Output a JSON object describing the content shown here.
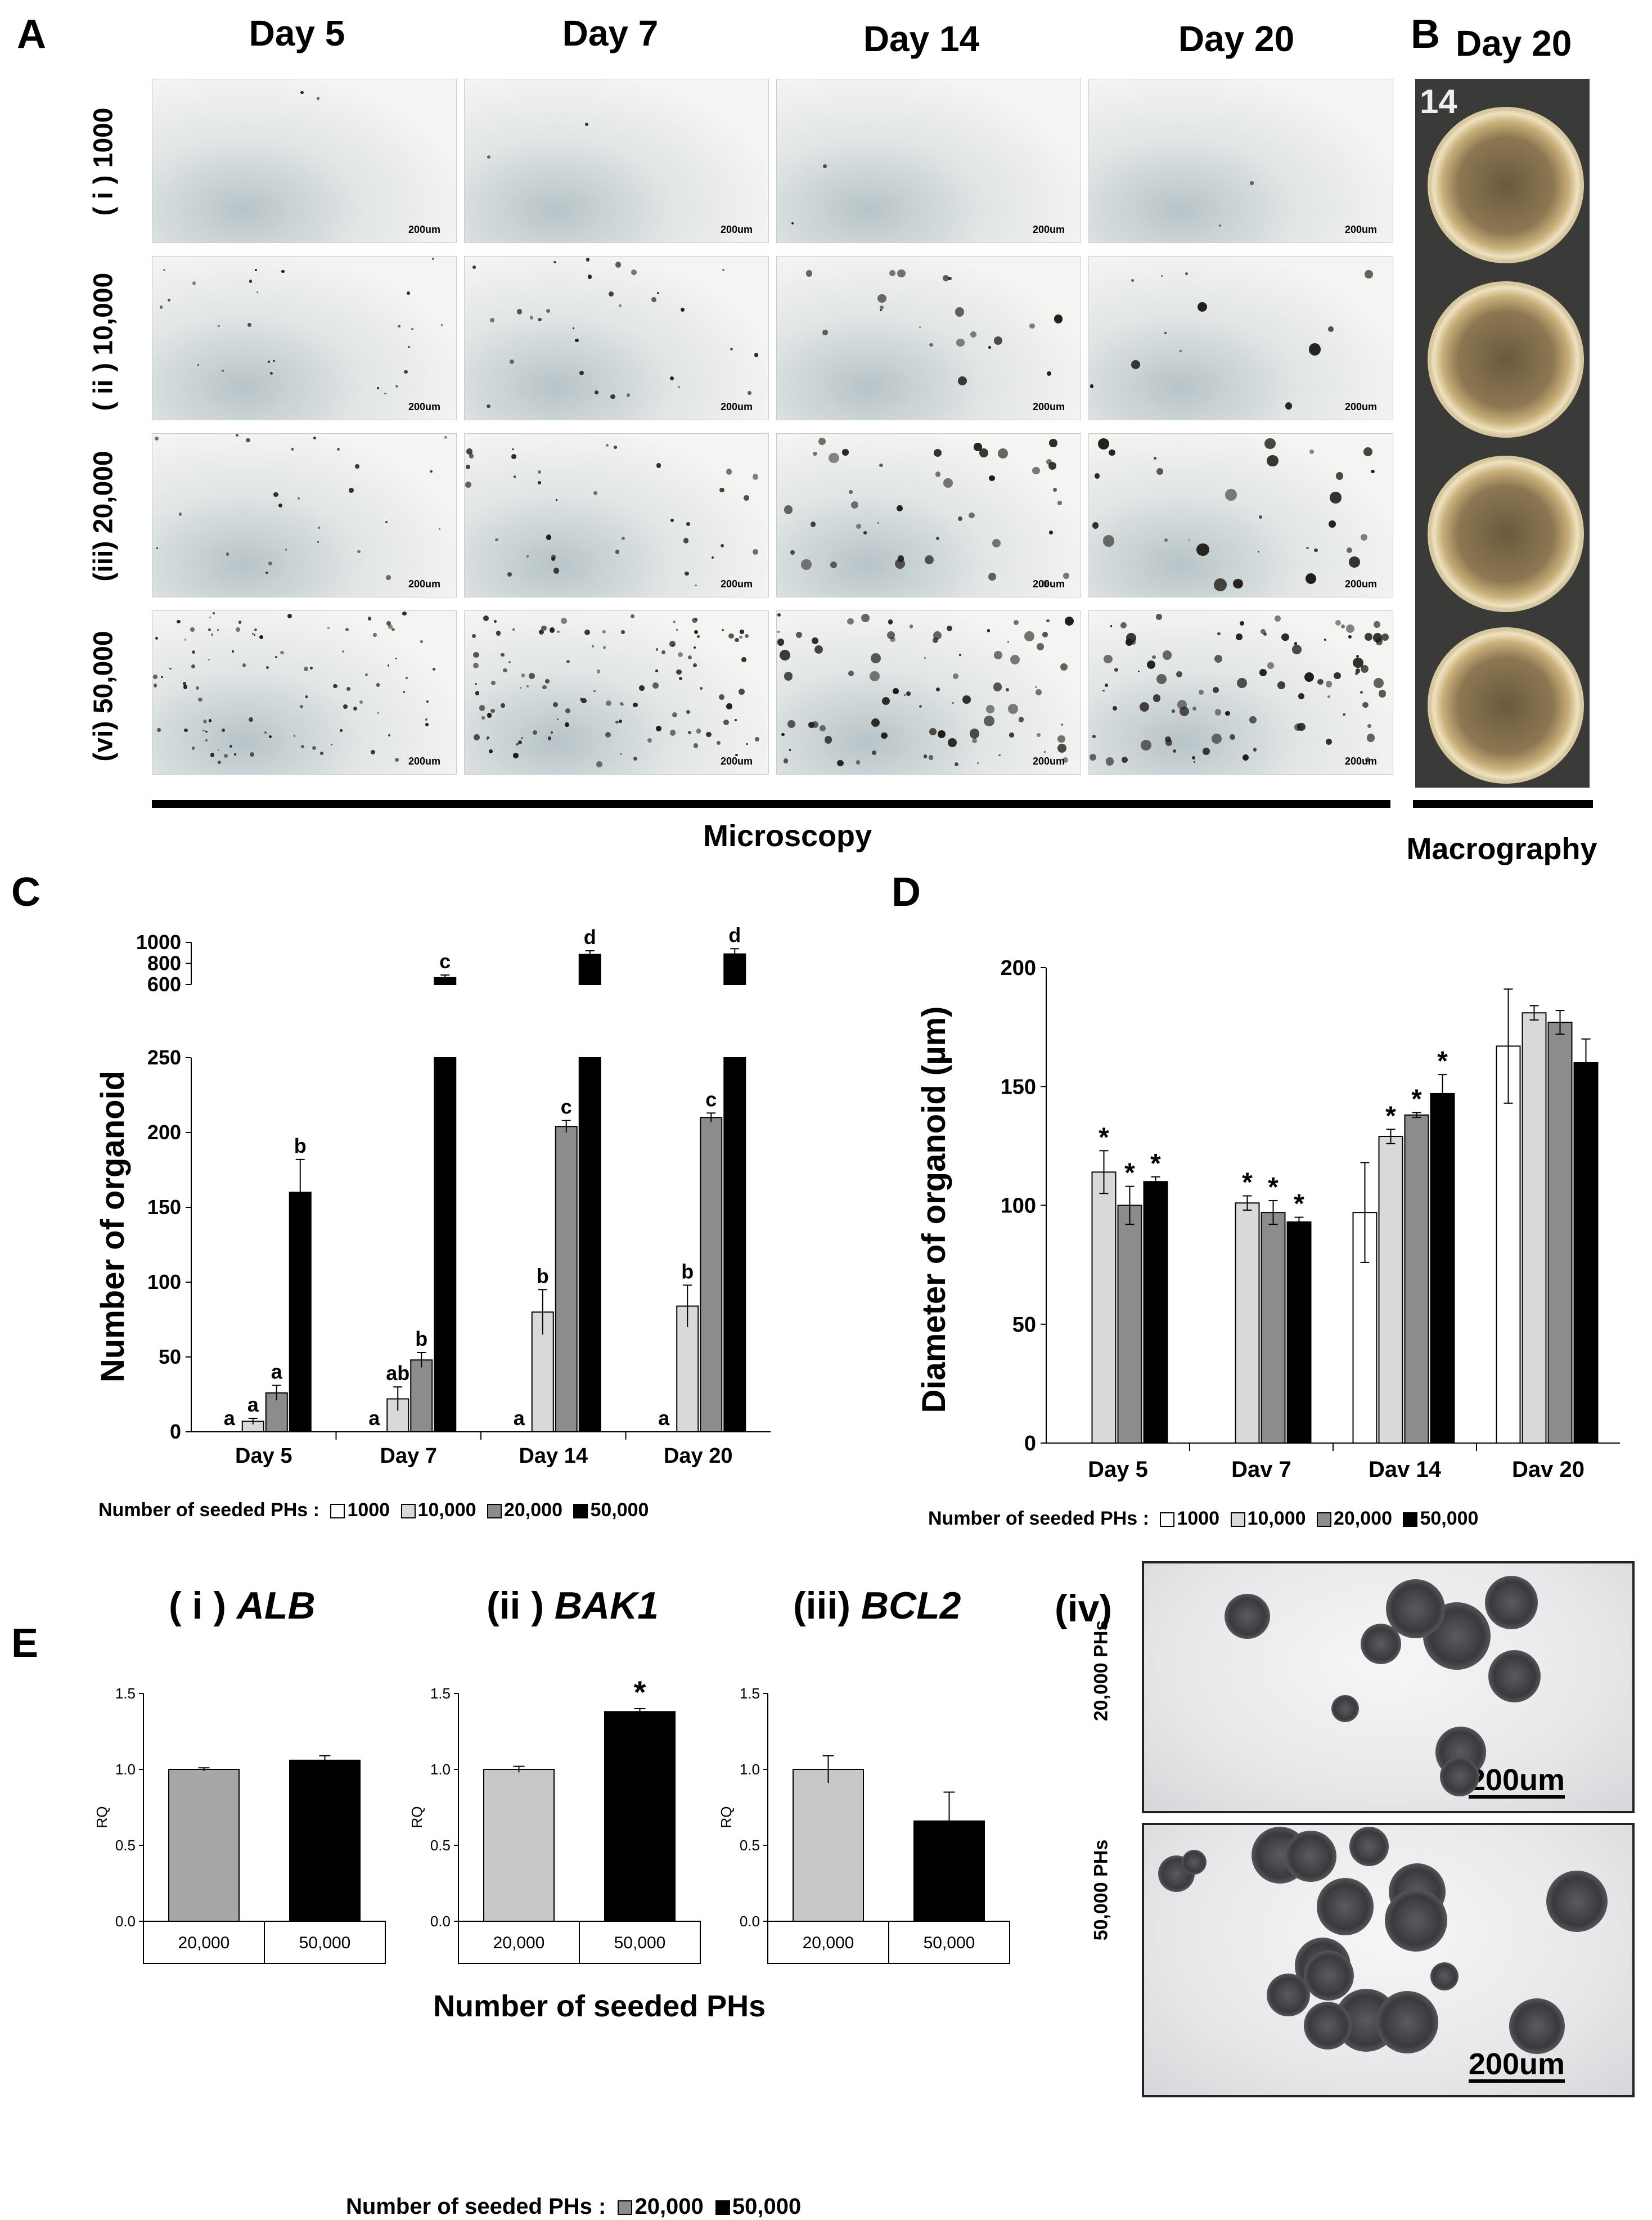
{
  "panelA": {
    "letter": "A",
    "columns": [
      "Day 5",
      "Day 7",
      "Day 14",
      "Day 20"
    ],
    "rows": [
      "( i ) 1000",
      "( ii ) 10,000",
      "(iii) 20,000",
      "(vi) 50,000"
    ],
    "scale_label": "200um",
    "section_label": "Microscopy"
  },
  "panelB": {
    "letter": "B",
    "title": "Day 20",
    "plate_mark": "14",
    "section_label": "Macrography"
  },
  "panelC": {
    "letter": "C",
    "legend_prefix": "Number of seeded PHs :",
    "legend_items": [
      "1000",
      "10,000",
      "20,000",
      "50,000"
    ]
  },
  "panelD": {
    "letter": "D",
    "legend_prefix": "Number of seeded PHs :",
    "legend_items": [
      "1000",
      "10,000",
      "20,000",
      "50,000"
    ]
  },
  "panelE": {
    "letter": "E",
    "subtitles": [
      {
        "num": "( i ) ",
        "gene": "ALB"
      },
      {
        "num": "(ii ) ",
        "gene": "BAK1"
      },
      {
        "num": "(iii) ",
        "gene": "BCL2"
      }
    ],
    "iv_label": "(iv)",
    "iv_row_labels": [
      "20,000 PHs",
      "50,000 PHs"
    ],
    "iv_scale": "200um",
    "x_title": "Number of seeded PHs",
    "legend_prefix": "Number of seeded PHs :",
    "legend_items": [
      "20,000",
      "50,000"
    ]
  },
  "colors": {
    "c1000": "#ffffff",
    "c10000": "#d9d9d9",
    "c20000": "#8c8c8c",
    "c50000": "#000000"
  },
  "chart_data": [
    {
      "id": "C",
      "type": "bar",
      "title": "",
      "xlabel": "",
      "ylabel": "Number of organoid",
      "ylim_lower": [
        0,
        250
      ],
      "ylim_upper": [
        600,
        1000
      ],
      "yticks_lower": [
        0,
        50,
        100,
        150,
        200,
        250
      ],
      "yticks_upper": [
        600,
        800,
        1000
      ],
      "categories": [
        "Day 5",
        "Day 7",
        "Day 14",
        "Day 20"
      ],
      "series": [
        {
          "name": "1000",
          "values": [
            0,
            0,
            0,
            0
          ],
          "errors": [
            0,
            0,
            0,
            0
          ],
          "letters": [
            "a",
            "a",
            "a",
            "a"
          ]
        },
        {
          "name": "10,000",
          "values": [
            7,
            22,
            80,
            84
          ],
          "errors": [
            2,
            8,
            15,
            14
          ],
          "letters": [
            "a",
            "ab",
            "b",
            "b"
          ]
        },
        {
          "name": "20,000",
          "values": [
            26,
            48,
            204,
            210
          ],
          "errors": [
            5,
            5,
            4,
            3
          ],
          "letters": [
            "a",
            "b",
            "c",
            "c"
          ]
        },
        {
          "name": "50,000",
          "values": [
            160,
            665,
            885,
            890
          ],
          "errors": [
            22,
            25,
            35,
            50
          ],
          "letters": [
            "b",
            "c",
            "d",
            "d"
          ]
        }
      ]
    },
    {
      "id": "D",
      "type": "bar",
      "title": "",
      "xlabel": "",
      "ylabel": "Diameter of organoid (µm)",
      "ylim": [
        0,
        200
      ],
      "yticks": [
        0,
        50,
        100,
        150,
        200
      ],
      "categories": [
        "Day 5",
        "Dav 7",
        "Dav 14",
        "Dav 20"
      ],
      "series": [
        {
          "name": "1000",
          "values": [
            0,
            0,
            97,
            167
          ],
          "errors": [
            0,
            0,
            21,
            24
          ],
          "stars": [
            false,
            false,
            false,
            false
          ]
        },
        {
          "name": "10,000",
          "values": [
            114,
            101,
            129,
            181
          ],
          "errors": [
            9,
            3,
            3,
            3
          ],
          "stars": [
            true,
            true,
            true,
            false
          ]
        },
        {
          "name": "20,000",
          "values": [
            100,
            97,
            138,
            177
          ],
          "errors": [
            8,
            5,
            1,
            5
          ],
          "stars": [
            true,
            true,
            true,
            false
          ]
        },
        {
          "name": "50,000",
          "values": [
            110,
            93,
            147,
            160
          ],
          "errors": [
            2,
            2,
            8,
            10
          ],
          "stars": [
            true,
            true,
            true,
            false
          ]
        }
      ]
    },
    {
      "id": "E-i",
      "type": "bar",
      "gene": "ALB",
      "ylabel": "RQ",
      "ylim": [
        0,
        1.5
      ],
      "yticks": [
        "0.0",
        "0.5",
        "1.0",
        "1.5"
      ],
      "categories": [
        "20,000",
        "50,000"
      ],
      "values": [
        1.0,
        1.06
      ],
      "errors": [
        0.01,
        0.03
      ],
      "stars": [
        false,
        false
      ]
    },
    {
      "id": "E-ii",
      "type": "bar",
      "gene": "BAK1",
      "ylabel": "RQ",
      "ylim": [
        0,
        1.5
      ],
      "yticks": [
        "0.0",
        "0.5",
        "1.0",
        "1.5"
      ],
      "categories": [
        "20,000",
        "50,000"
      ],
      "values": [
        1.0,
        1.38
      ],
      "errors": [
        0.02,
        0.02
      ],
      "stars": [
        false,
        true
      ]
    },
    {
      "id": "E-iii",
      "type": "bar",
      "gene": "BCL2",
      "ylabel": "RQ",
      "ylim": [
        0,
        1.5
      ],
      "yticks": [
        "0.0",
        "0.5",
        "1.0",
        "1.5"
      ],
      "categories": [
        "20,000",
        "50,000"
      ],
      "values": [
        1.0,
        0.66
      ],
      "errors": [
        0.09,
        0.19
      ],
      "stars": [
        false,
        false
      ]
    }
  ]
}
